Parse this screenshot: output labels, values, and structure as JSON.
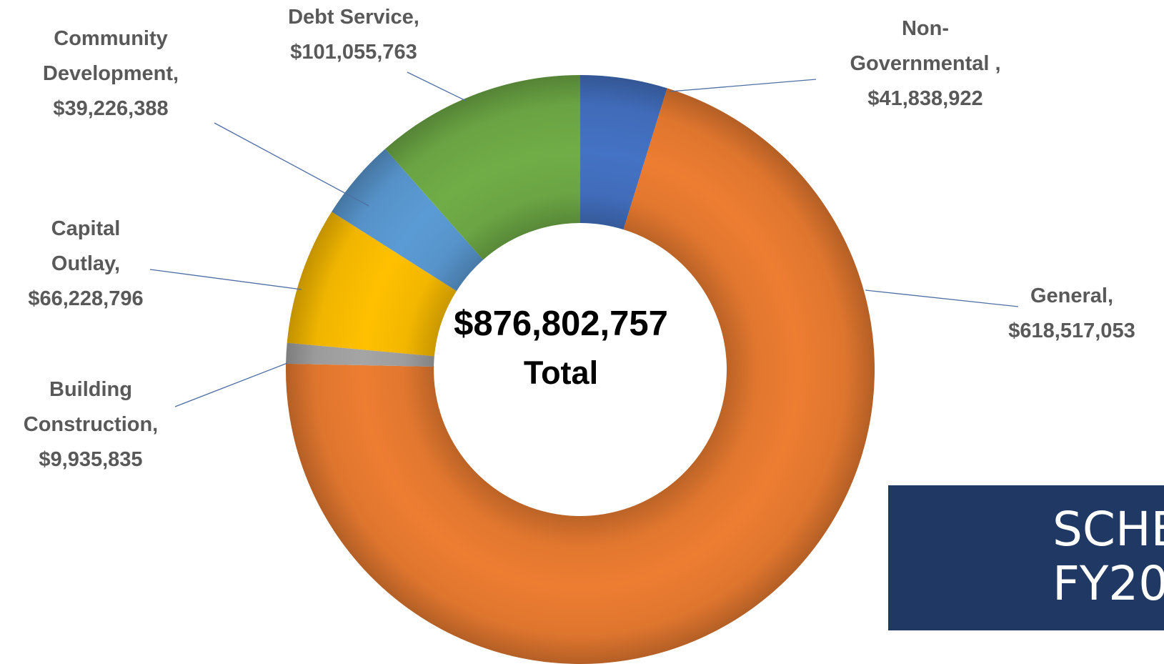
{
  "chart_data": {
    "type": "pie",
    "title": "",
    "center_text": {
      "amount": "$876,802,757",
      "label": "Total"
    },
    "slices": [
      {
        "name": "Non-Governmental",
        "value": 41838922,
        "label_lines": [
          "Non-",
          "Governmental ,",
          "$41,838,922"
        ],
        "color": "#4472c4"
      },
      {
        "name": "General",
        "value": 618517053,
        "label_lines": [
          "General,",
          "$618,517,053"
        ],
        "color": "#ed7d31"
      },
      {
        "name": "Building Construction",
        "value": 9935835,
        "label_lines": [
          "Building",
          "Construction,",
          "$9,935,835"
        ],
        "color": "#a5a5a5"
      },
      {
        "name": "Capital Outlay",
        "value": 66228796,
        "label_lines": [
          "Capital",
          "Outlay,",
          "$66,228,796"
        ],
        "color": "#ffc000"
      },
      {
        "name": "Community Development",
        "value": 39226388,
        "label_lines": [
          "Community",
          "Development,",
          "$39,226,388"
        ],
        "color": "#5b9bd5"
      },
      {
        "name": "Debt Service",
        "value": 101055763,
        "label_lines": [
          "Debt Service,",
          "$101,055,763"
        ],
        "color": "#70ad47"
      }
    ],
    "legend": "none"
  },
  "title_box": {
    "line1": "SCHE",
    "line2": "FY20",
    "background": "#1f3864"
  }
}
